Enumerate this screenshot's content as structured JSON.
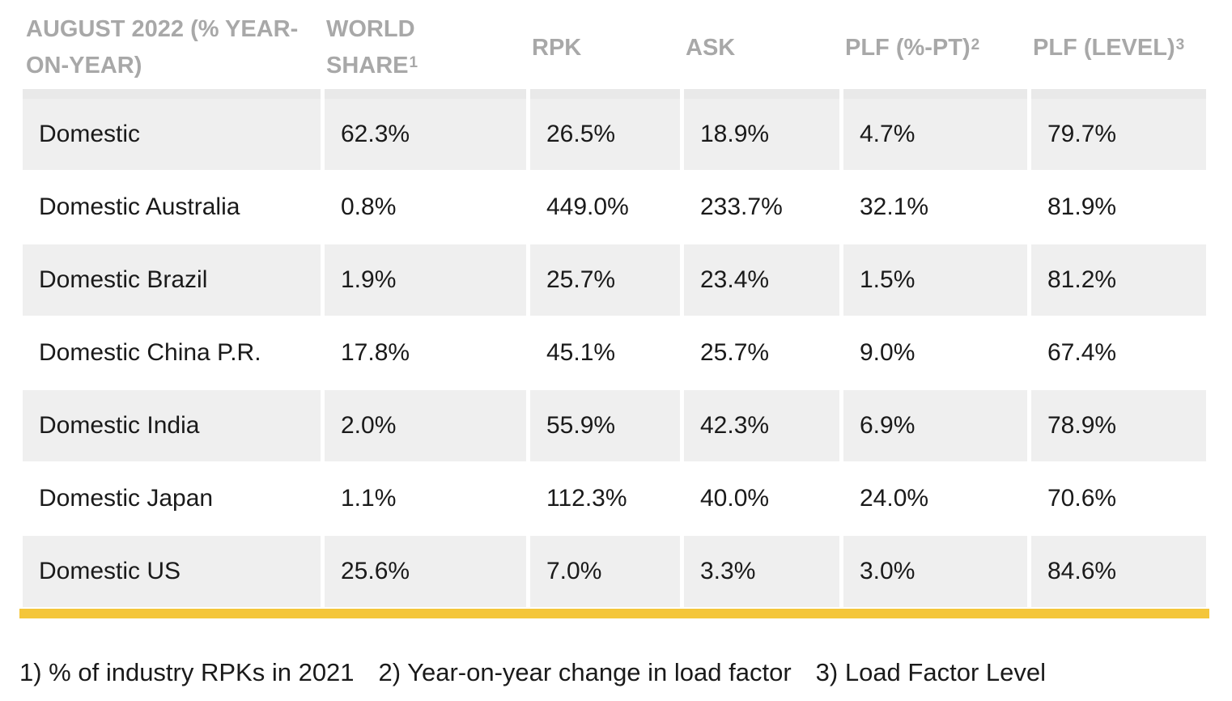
{
  "table": {
    "headers": [
      {
        "line1": "AUGUST 2022 (% YEAR-",
        "line2": "ON-YEAR)",
        "sup": ""
      },
      {
        "line1": "WORLD",
        "line2": "SHARE",
        "sup": "1"
      },
      {
        "line1": "RPK",
        "line2": "",
        "sup": ""
      },
      {
        "line1": "ASK",
        "line2": "",
        "sup": ""
      },
      {
        "line1": "PLF (%-PT)",
        "line2": "",
        "sup": "2"
      },
      {
        "line1": "PLF (LEVEL)",
        "line2": "",
        "sup": "3"
      }
    ],
    "rows": [
      [
        "Domestic",
        "62.3%",
        "26.5%",
        "18.9%",
        "4.7%",
        "79.7%"
      ],
      [
        "Domestic Australia",
        "0.8%",
        "449.0%",
        "233.7%",
        "32.1%",
        "81.9%"
      ],
      [
        "Domestic Brazil",
        "1.9%",
        "25.7%",
        "23.4%",
        "1.5%",
        "81.2%"
      ],
      [
        "Domestic China P.R.",
        "17.8%",
        "45.1%",
        "25.7%",
        "9.0%",
        "67.4%"
      ],
      [
        "Domestic India",
        "2.0%",
        "55.9%",
        "42.3%",
        "6.9%",
        "78.9%"
      ],
      [
        "Domestic Japan",
        "1.1%",
        "112.3%",
        "40.0%",
        "24.0%",
        "70.6%"
      ],
      [
        "Domestic US",
        "25.6%",
        "7.0%",
        "3.3%",
        "3.0%",
        "84.6%"
      ]
    ]
  },
  "footnotes": [
    "1) % of industry RPKs in 2021",
    "2) Year-on-year change in load factor",
    "3) Load Factor Level"
  ],
  "colors": {
    "header_text": "#a8a8a8",
    "row_shade": "#efefef",
    "accent_bar": "#f4c63a"
  }
}
